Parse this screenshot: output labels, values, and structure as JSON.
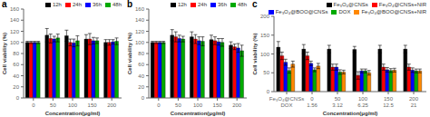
{
  "chart_data": [
    {
      "type": "bar",
      "title": "a",
      "xlabel": "Concentration(μg/ml)",
      "ylabel": "Cell viability (%)",
      "ylim": [
        0,
        160
      ],
      "yticks": [
        0,
        20,
        40,
        60,
        80,
        100,
        120,
        140,
        160
      ],
      "categories": [
        "0",
        "50",
        "100",
        "150",
        "200"
      ],
      "legend": "upper right",
      "grid": false,
      "series": [
        {
          "name": "12h",
          "color": "#000000",
          "values": [
            100,
            113,
            112,
            106,
            100
          ],
          "errors": [
            2,
            12,
            10,
            8,
            5
          ]
        },
        {
          "name": "24h",
          "color": "#ff0000",
          "values": [
            100,
            107,
            100,
            106,
            100
          ],
          "errors": [
            2,
            8,
            6,
            10,
            5
          ]
        },
        {
          "name": "36h",
          "color": "#0000ff",
          "values": [
            100,
            106,
            99,
            103,
            101
          ],
          "errors": [
            2,
            5,
            7,
            6,
            4
          ]
        },
        {
          "name": "48h",
          "color": "#00aa00",
          "values": [
            100,
            108,
            103,
            103,
            102
          ],
          "errors": [
            2,
            7,
            9,
            5,
            6
          ]
        }
      ]
    },
    {
      "type": "bar",
      "title": "b",
      "xlabel": "Concentration(μg/ml)",
      "ylabel": "Cell viability (%)",
      "ylim": [
        0,
        160
      ],
      "yticks": [
        0,
        20,
        40,
        60,
        80,
        100,
        120,
        140,
        160
      ],
      "categories": [
        "0",
        "50",
        "100",
        "150",
        "200"
      ],
      "legend": "upper right",
      "grid": false,
      "series": [
        {
          "name": "12h",
          "color": "#000000",
          "values": [
            100,
            113,
            110,
            105,
            95
          ],
          "errors": [
            2,
            10,
            9,
            8,
            6
          ]
        },
        {
          "name": "24h",
          "color": "#ff0000",
          "values": [
            100,
            110,
            106,
            103,
            92
          ],
          "errors": [
            2,
            9,
            8,
            7,
            5
          ]
        },
        {
          "name": "36h",
          "color": "#0000ff",
          "values": [
            100,
            107,
            103,
            101,
            90
          ],
          "errors": [
            2,
            6,
            7,
            6,
            8
          ]
        },
        {
          "name": "48h",
          "color": "#00aa00",
          "values": [
            100,
            106,
            102,
            100,
            85
          ],
          "errors": [
            2,
            5,
            8,
            7,
            10
          ]
        }
      ]
    },
    {
      "type": "bar",
      "title": "c",
      "xlabel": "Concentration(μg/ml)",
      "ylabel": "Cell viability (%)",
      "ylim": [
        0,
        200
      ],
      "yticks": [
        0,
        50,
        100,
        150,
        200
      ],
      "categories": [
        "Fe₃O₄@CNSs\nDOX",
        "0\n1.56",
        "50\n3.12",
        "100\n6.25",
        "150\n12.5",
        "200\n21"
      ],
      "legend": "upper right",
      "grid": false,
      "series": [
        {
          "name": "Fe₃O₄@CNSs",
          "color": "#000000",
          "values": [
            118,
            113,
            113,
            112,
            113,
            113
          ],
          "errors": [
            15,
            12,
            10,
            8,
            10,
            10
          ]
        },
        {
          "name": "Fe₃O₄@CNSs+NIR",
          "color": "#ff0000",
          "values": [
            95,
            95,
            65,
            43,
            65,
            65
          ],
          "errors": [
            10,
            10,
            8,
            10,
            8,
            8
          ]
        },
        {
          "name": "Fe₃O₄@BOO@CNSs",
          "color": "#0000ff",
          "values": [
            78,
            75,
            65,
            55,
            58,
            57
          ],
          "errors": [
            8,
            6,
            8,
            5,
            6,
            6
          ]
        },
        {
          "name": "DOX",
          "color": "#00aa00",
          "values": [
            56,
            58,
            52,
            55,
            56,
            55
          ],
          "errors": [
            7,
            5,
            6,
            5,
            5,
            5
          ]
        },
        {
          "name": "Fe₃O₄@BOO@CNSs+NIR",
          "color": "#ff8800",
          "values": [
            73,
            68,
            52,
            50,
            57,
            55
          ],
          "errors": [
            8,
            7,
            5,
            6,
            5,
            5
          ]
        }
      ]
    }
  ]
}
